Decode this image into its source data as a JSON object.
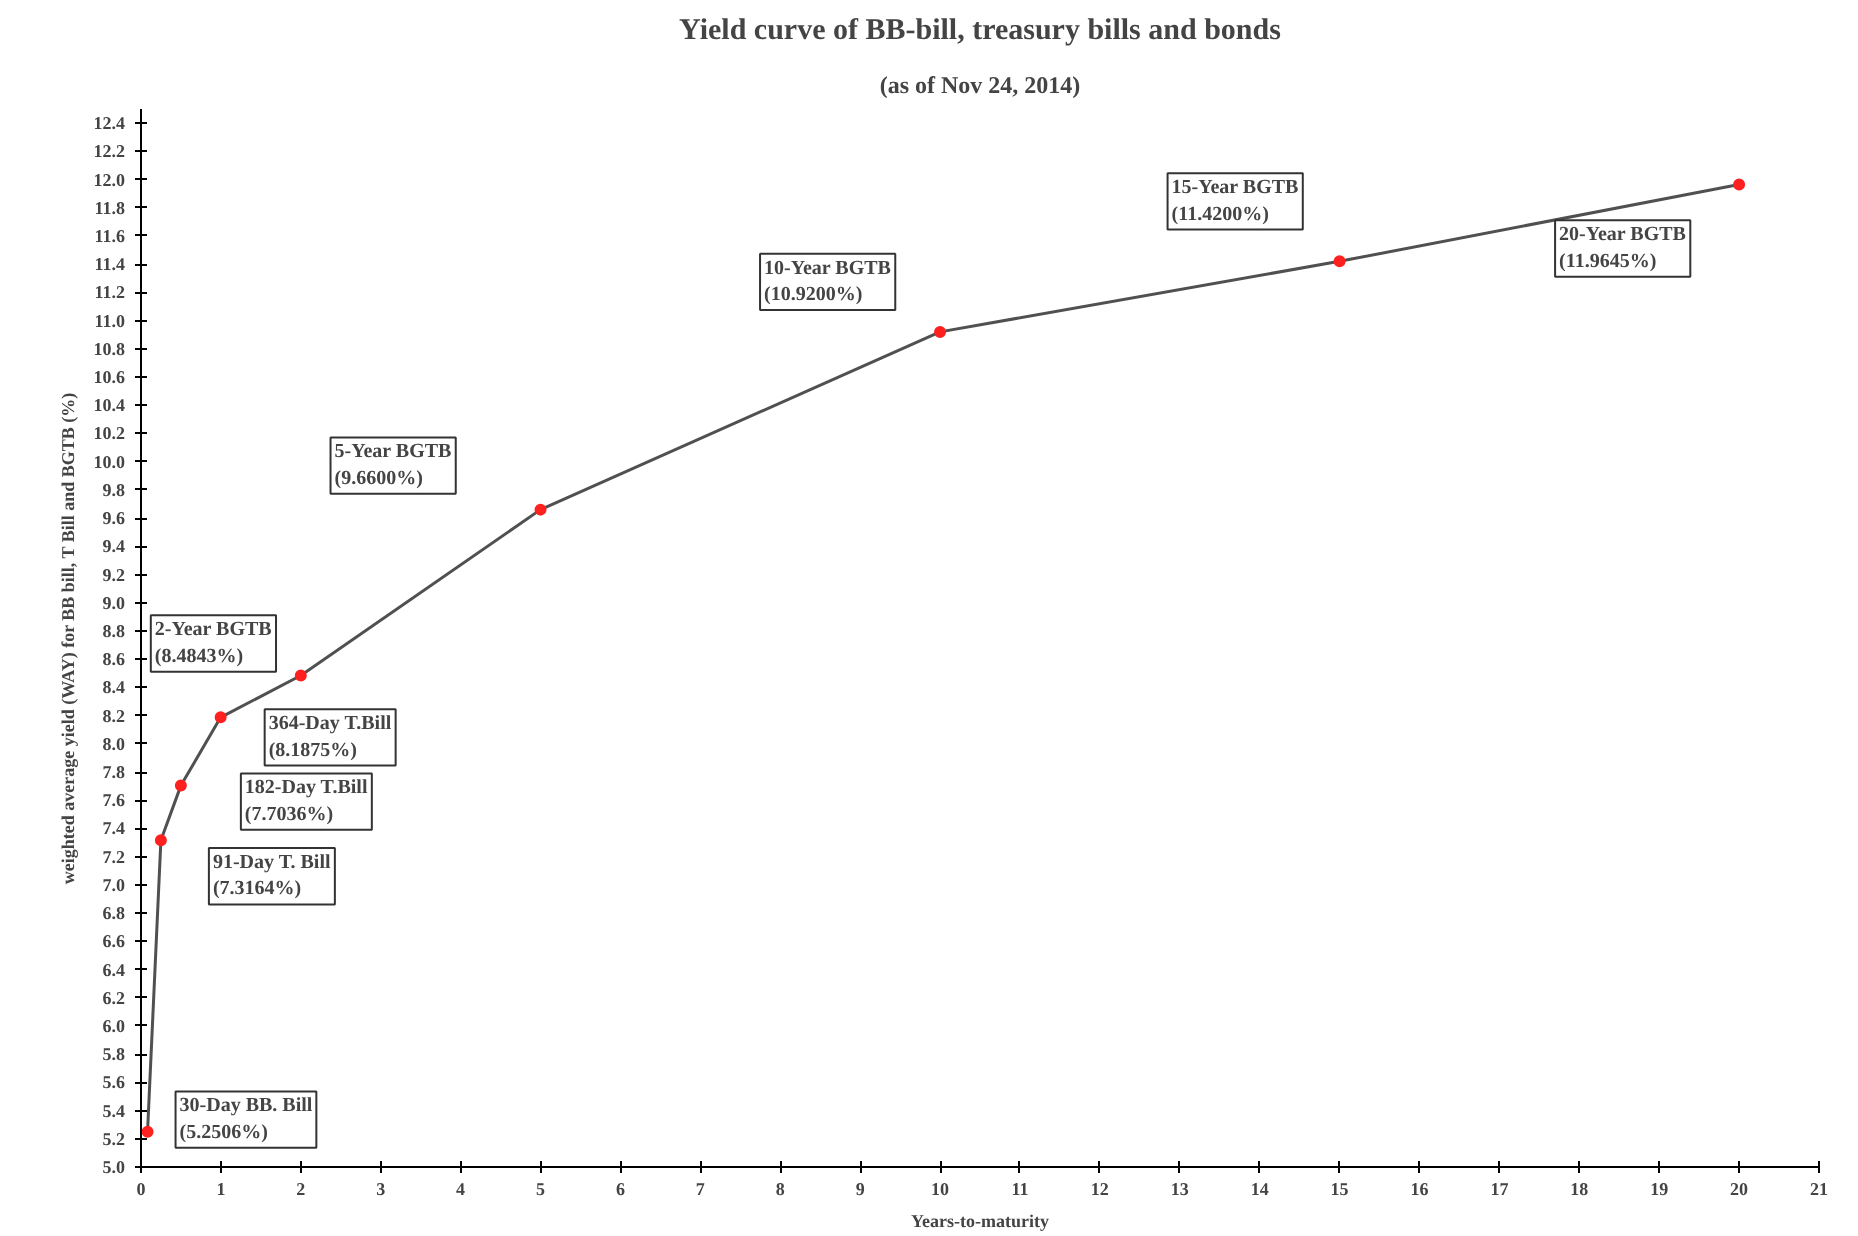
{
  "chart_data": {
    "type": "line",
    "title": "Yield curve of BB-bill, treasury bills and bonds",
    "subtitle": "(as of Nov 24, 2014)",
    "xlabel": "Years-to-maturity",
    "ylabel": "weighted average yield (WAY) for BB bill, T Bill and BGTB (%)",
    "x": [
      0.082,
      0.249,
      0.499,
      0.997,
      2,
      5,
      10,
      15,
      20
    ],
    "series": [
      {
        "color": "#505050",
        "values": [
          5.2506,
          7.3164,
          7.7036,
          8.1875,
          8.4843,
          9.66,
          10.92,
          11.42,
          11.9645
        ]
      },
      {
        "type": "scatter",
        "color": "#ff2020",
        "values": [
          5.2506,
          7.3164,
          7.7036,
          8.1875,
          8.4843,
          9.66,
          10.92,
          11.42,
          11.9645
        ]
      }
    ],
    "grid": false,
    "xlim": [
      0,
      21
    ],
    "xticks": [
      0,
      1,
      2,
      3,
      4,
      5,
      6,
      7,
      8,
      9,
      10,
      11,
      12,
      13,
      14,
      15,
      16,
      17,
      18,
      19,
      20,
      21
    ],
    "ylim": [
      5.0,
      12.5
    ],
    "yticks": [
      {
        "value": 5,
        "label": "5.0"
      },
      5.2,
      5.4,
      5.6,
      5.8,
      {
        "value": 6,
        "label": "6.0"
      },
      6.2,
      6.4,
      6.6,
      6.8,
      {
        "value": 7,
        "label": "7.0"
      },
      7.2,
      7.4,
      7.6,
      7.8,
      {
        "value": 8,
        "label": "8.0"
      },
      8.2,
      8.4,
      8.6,
      8.8,
      {
        "value": 9,
        "label": "9.0"
      },
      9.2,
      9.4,
      9.6,
      9.8,
      {
        "value": 10,
        "label": "10.0"
      },
      10.2,
      10.4,
      10.6,
      10.8,
      {
        "value": 11,
        "label": "11.0"
      },
      11.2,
      11.4,
      11.6,
      11.8,
      {
        "value": 12,
        "label": "12.0"
      },
      12.2,
      12.4
    ],
    "annotations": [
      "30-Day BB. Bill\n(5.2506%)",
      "91-Day T. Bill\n(7.3164%)",
      "182-Day T.Bill\n(7.7036%)",
      "364-Day T.Bill\n(8.1875%)",
      "2-Year BGTB\n(8.4843%)",
      "5-Year BGTB\n(9.6600%)",
      "10-Year BGTB\n(10.9200%)",
      "15-Year BGTB\n(11.4200%)",
      "20-Year BGTB\n(11.9645%)"
    ]
  }
}
